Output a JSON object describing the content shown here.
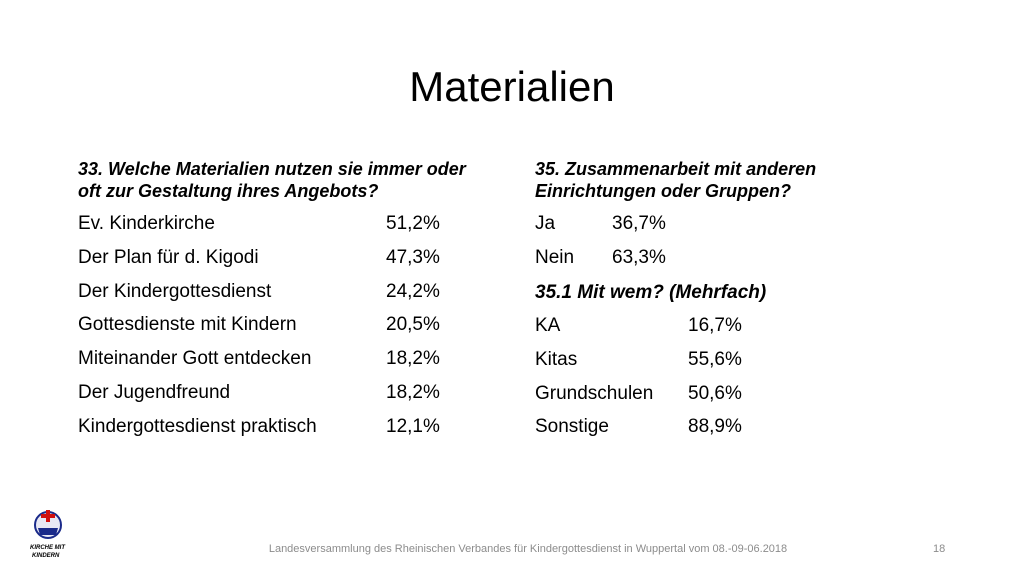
{
  "title": "Materialien",
  "left": {
    "heading": [
      "33. Welche Materialien nutzen sie immer oder",
      "oft zur Gestaltung ihres Angebots?"
    ],
    "rows": [
      [
        "Ev. Kinderkirche",
        "51,2%"
      ],
      [
        "Der Plan für d. Kigodi",
        "47,3%"
      ],
      [
        "Der Kindergottesdienst",
        "24,2%"
      ],
      [
        "Gottesdienste mit Kindern",
        "20,5%"
      ],
      [
        "Miteinander Gott entdecken",
        "18,2%"
      ],
      [
        "Der Jugendfreund",
        "18,2%"
      ],
      [
        "Kindergottesdienst praktisch",
        "12,1%"
      ]
    ]
  },
  "right": {
    "heading": [
      "35. Zusammenarbeit mit anderen",
      "Einrichtungen oder Gruppen?"
    ],
    "rows": [
      [
        "Ja",
        "36,7%"
      ],
      [
        "Nein",
        "63,3%"
      ]
    ],
    "subheading": "35.1 Mit wem? (Mehrfach)",
    "subrows": [
      [
        "KA",
        "16,7%"
      ],
      [
        "Kitas",
        "55,6%"
      ],
      [
        "Grundschulen",
        "50,6%"
      ],
      [
        "Sonstige",
        "88,9%"
      ]
    ]
  },
  "logo": [
    "KIRCHE MIT",
    "KINDERN"
  ],
  "footer": "Landesversammlung des Rheinischen Verbandes für Kindergottesdienst in Wuppertal vom 08.-09-06.2018",
  "page_number": "18"
}
